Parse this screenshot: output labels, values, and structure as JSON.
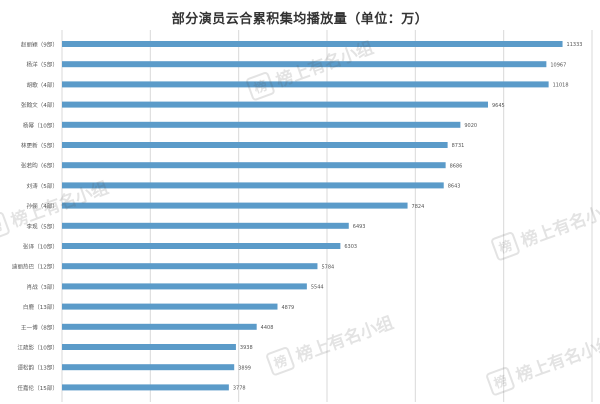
{
  "chart_data": {
    "type": "bar",
    "orientation": "horizontal",
    "title": "部分演员云合累积集均播放量（单位：万）",
    "categories": [
      "赵丽颖（9部）",
      "杨洋（5部）",
      "胡歌（4部）",
      "张翰文（4部）",
      "杨幂（10部）",
      "林更新（5部）",
      "张若昀（6部）",
      "刘涛（5部）",
      "孙俪（4部）",
      "李现（5部）",
      "张译（10部）",
      "迪丽热巴（12部）",
      "肖战（3部）",
      "白鹿（13部）",
      "王一博（8部）",
      "江疏影（10部）",
      "谭松韵（13部）",
      "任嘉伦（15部）"
    ],
    "values": [
      11333,
      10967,
      11018,
      9645,
      9020,
      8731,
      8686,
      8643,
      7824,
      6493,
      6303,
      5784,
      5544,
      4879,
      4408,
      3938,
      3899,
      3778
    ],
    "value_labels": [
      "11333",
      "10967",
      "11018",
      "9645",
      "9020",
      "8731",
      "8686",
      "8643",
      "7824",
      "6493",
      "6303",
      "5784",
      "5544",
      "4879",
      "4408",
      "3938",
      "3899",
      "3778"
    ],
    "xlim": [
      0,
      12000
    ],
    "grid": true,
    "bar_color": "#5b9bc9",
    "grid_color": "#d9d9d9"
  },
  "watermarks": [
    {
      "icon": "榜-logo-icon",
      "text": "榜上有名小组"
    },
    {
      "icon": "榜-logo-icon",
      "text": "榜上有名小组"
    },
    {
      "icon": "榜-logo-icon",
      "text": "榜上有名小组"
    },
    {
      "icon": "榜-logo-icon",
      "text": "榜上有名小组"
    },
    {
      "icon": "榜-logo-icon",
      "text": "榜上有名小组"
    }
  ]
}
